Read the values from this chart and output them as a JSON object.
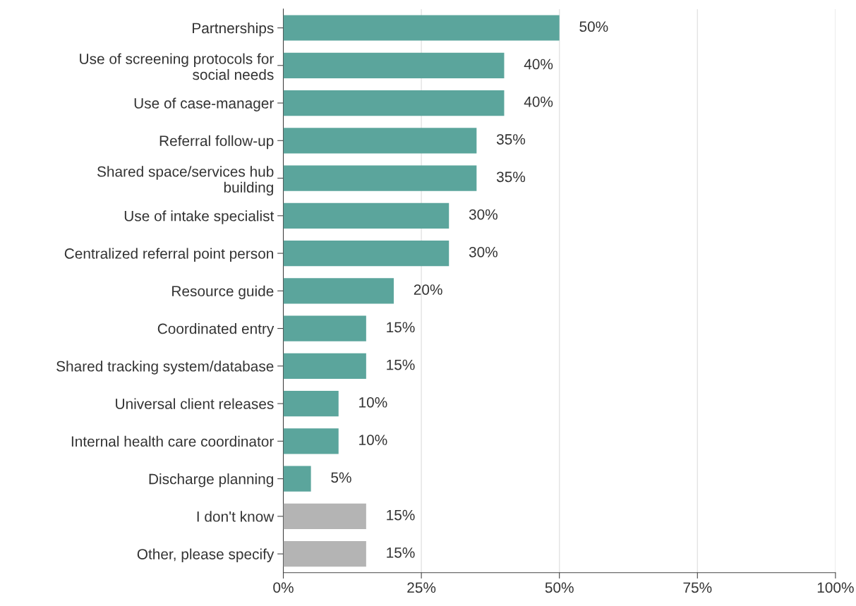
{
  "chart_data": {
    "type": "bar",
    "orientation": "horizontal",
    "categories": [
      "Partnerships",
      "Use of screening protocols for\nsocial needs",
      "Use of case-manager",
      "Referral follow-up",
      "Shared space/services hub\nbuilding",
      "Use of intake specialist",
      "Centralized referral point person",
      "Resource guide",
      "Coordinated entry",
      "Shared tracking system/database",
      "Universal client releases",
      "Internal health care coordinator",
      "Discharge planning",
      "I don't know",
      "Other, please specify"
    ],
    "values": [
      50,
      40,
      40,
      35,
      35,
      30,
      30,
      20,
      15,
      15,
      10,
      10,
      5,
      15,
      15
    ],
    "colors": [
      "#5ba59c",
      "#5ba59c",
      "#5ba59c",
      "#5ba59c",
      "#5ba59c",
      "#5ba59c",
      "#5ba59c",
      "#5ba59c",
      "#5ba59c",
      "#5ba59c",
      "#5ba59c",
      "#5ba59c",
      "#5ba59c",
      "#b4b4b4",
      "#b4b4b4"
    ],
    "value_labels": [
      "50%",
      "40%",
      "40%",
      "35%",
      "35%",
      "30%",
      "30%",
      "20%",
      "15%",
      "15%",
      "10%",
      "10%",
      "5%",
      "15%",
      "15%"
    ],
    "xlim": [
      0,
      100
    ],
    "xticks": [
      {
        "value": 0,
        "label": "0%"
      },
      {
        "value": 25,
        "label": "25%"
      },
      {
        "value": 50,
        "label": "50%"
      },
      {
        "value": 75,
        "label": "75%"
      },
      {
        "value": 100,
        "label": "100%"
      }
    ],
    "grid": "x",
    "legend": false
  }
}
